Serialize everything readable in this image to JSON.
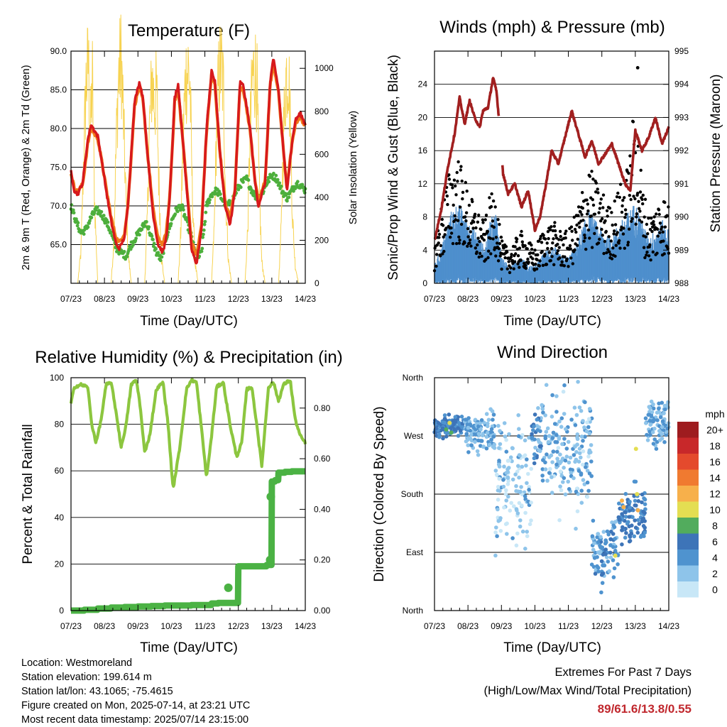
{
  "chart_data": [
    {
      "type": "line",
      "title": "Temperature (F)",
      "xlabel": "Time (Day/UTC)",
      "ylabel": "2m & 9m T (Red, Orange) & 2m Td (Green)",
      "y2label": "Solar Insolation (Yellow)",
      "x_ticks": [
        "07/23",
        "08/23",
        "09/23",
        "10/23",
        "11/23",
        "12/23",
        "13/23",
        "14/23"
      ],
      "ylim": [
        60,
        90
      ],
      "y_ticks": [
        "65.0",
        "70.0",
        "75.0",
        "80.0",
        "85.0",
        "90.0"
      ],
      "y2lim": [
        0,
        1080
      ],
      "y2_ticks": [
        "0",
        "200",
        "400",
        "600",
        "800",
        "1000"
      ],
      "grid": true,
      "colors": {
        "t2m": "#d7191c",
        "t9m": "#f07a1a",
        "td2m": "#4daf3c",
        "solar": "#f7d352"
      },
      "series": [
        {
          "key": "t2m",
          "x": [
            0,
            0.1,
            0.2,
            0.35,
            0.5,
            0.6,
            0.8,
            0.95,
            1.05,
            1.2,
            1.35,
            1.45,
            1.6,
            1.7,
            1.9,
            2.05,
            2.15,
            2.3,
            2.45,
            2.6,
            2.75,
            2.85,
            2.95,
            3.1,
            3.2,
            3.35,
            3.5,
            3.6,
            3.75,
            3.9,
            4.05,
            4.2,
            4.3,
            4.45,
            4.6,
            4.75,
            4.9,
            5.05,
            5.15,
            5.35,
            5.5,
            5.6,
            5.8,
            5.95,
            6.05,
            6.2,
            6.35,
            6.45,
            6.6,
            6.7,
            6.85,
            7.0
          ],
          "values": [
            74.5,
            72,
            71.5,
            73,
            78.5,
            80.5,
            79,
            75,
            72,
            68,
            65,
            64.5,
            66,
            70,
            83.5,
            86,
            84,
            76,
            69,
            65,
            64,
            66,
            71,
            84,
            85.5,
            78,
            70,
            64.5,
            62.5,
            67,
            80,
            87.5,
            86,
            77,
            70,
            67.5,
            72,
            86,
            85.5,
            80,
            73,
            70,
            73,
            86,
            89,
            85,
            77,
            72,
            78,
            81,
            82,
            80.5
          ]
        },
        {
          "key": "t9m",
          "x": [
            0,
            0.1,
            0.2,
            0.35,
            0.5,
            0.6,
            0.8,
            0.95,
            1.05,
            1.2,
            1.35,
            1.45,
            1.6,
            1.7,
            1.9,
            2.05,
            2.15,
            2.3,
            2.45,
            2.6,
            2.75,
            2.85,
            2.95,
            3.1,
            3.2,
            3.35,
            3.5,
            3.6,
            3.75,
            3.9,
            4.05,
            4.2,
            4.3,
            4.45,
            4.6,
            4.75,
            4.9,
            5.05,
            5.15,
            5.35,
            5.5,
            5.6,
            5.8,
            5.95,
            6.05,
            6.2,
            6.35,
            6.45,
            6.6,
            6.7,
            6.85,
            7.0
          ],
          "values": [
            74.3,
            72.3,
            71.8,
            72.8,
            78,
            80,
            78.7,
            75,
            72.3,
            68.5,
            65.8,
            65.3,
            66.5,
            70,
            83,
            85.5,
            83.6,
            76.2,
            69.6,
            65.8,
            65,
            66.7,
            71.2,
            83.6,
            85,
            78,
            70.5,
            65.3,
            63.5,
            67.5,
            79.6,
            87,
            85.6,
            77,
            70.5,
            68.3,
            72.3,
            85.5,
            85,
            79.8,
            73.3,
            70.5,
            73.2,
            85.6,
            88.5,
            84.6,
            77,
            72.4,
            77.8,
            80.6,
            81.6,
            80.2
          ]
        },
        {
          "key": "td2m",
          "x": [
            0,
            0.15,
            0.3,
            0.45,
            0.6,
            0.75,
            0.9,
            1.05,
            1.2,
            1.35,
            1.5,
            1.65,
            1.8,
            1.95,
            2.1,
            2.25,
            2.4,
            2.55,
            2.7,
            2.85,
            3.0,
            3.15,
            3.3,
            3.45,
            3.6,
            3.75,
            3.9,
            4.05,
            4.2,
            4.35,
            4.5,
            4.65,
            4.8,
            4.95,
            5.1,
            5.25,
            5.4,
            5.55,
            5.7,
            5.85,
            6.0,
            6.15,
            6.3,
            6.45,
            6.6,
            6.75,
            6.9,
            7.0
          ],
          "values": [
            70,
            68,
            66.5,
            67,
            68.5,
            69.5,
            69,
            68,
            66.5,
            64.5,
            64,
            63.5,
            65,
            66,
            67,
            68,
            66,
            64,
            63,
            66,
            68,
            69.5,
            70,
            68,
            66,
            63,
            64,
            70,
            71.5,
            72,
            71,
            70,
            70.5,
            72,
            73,
            73.5,
            72,
            71,
            71.5,
            73,
            74,
            73.5,
            72,
            71,
            72,
            73,
            72.5,
            72
          ]
        },
        {
          "key": "solar",
          "axis": "y2",
          "x": [
            0,
            0.2,
            0.3,
            0.38,
            0.45,
            0.52,
            0.58,
            0.64,
            0.7,
            0.8,
            1.2,
            1.28,
            1.35,
            1.42,
            1.5,
            1.56,
            1.62,
            1.7,
            1.8,
            2.2,
            2.27,
            2.34,
            2.42,
            2.5,
            2.56,
            2.62,
            2.7,
            2.8,
            3.2,
            3.28,
            3.35,
            3.42,
            3.5,
            3.56,
            3.62,
            3.7,
            3.8,
            4.2,
            4.28,
            4.35,
            4.42,
            4.5,
            4.56,
            4.62,
            4.7,
            4.8,
            5.2,
            5.28,
            5.35,
            5.42,
            5.5,
            5.56,
            5.62,
            5.7,
            5.8,
            6.2,
            6.28,
            6.35,
            6.42,
            6.5,
            6.56,
            6.62,
            6.7,
            6.8,
            7.0
          ],
          "values": [
            0,
            0,
            150,
            600,
            920,
            1030,
            700,
            950,
            400,
            0,
            0,
            200,
            650,
            960,
            1050,
            800,
            500,
            150,
            0,
            0,
            250,
            700,
            950,
            830,
            900,
            500,
            120,
            0,
            0,
            240,
            680,
            950,
            1000,
            900,
            450,
            100,
            0,
            0,
            260,
            720,
            980,
            1010,
            880,
            420,
            110,
            0,
            0,
            250,
            700,
            950,
            1000,
            900,
            450,
            100,
            0,
            0,
            250,
            700,
            960,
            1000,
            700,
            300,
            80,
            0,
            0
          ]
        }
      ]
    },
    {
      "type": "scatter",
      "title": "Winds (mph) & Pressure (mb)",
      "xlabel": "Time (Day/UTC)",
      "ylabel": "Sonic/Prop Wind & Gust (Blue, Black)",
      "y2label": "Station Pressure (Maroon)",
      "x_ticks": [
        "07/23",
        "08/23",
        "09/23",
        "10/23",
        "11/23",
        "12/23",
        "13/23",
        "14/23"
      ],
      "ylim": [
        0,
        28
      ],
      "y_ticks": [
        "0",
        "4",
        "8",
        "12",
        "16",
        "20",
        "24"
      ],
      "y2lim": [
        988,
        995
      ],
      "y2_ticks": [
        "988",
        "989",
        "990",
        "991",
        "992",
        "993",
        "994",
        "995"
      ],
      "grid": true,
      "colors": {
        "wind": "#4e8fcd",
        "gust": "#000000",
        "pressure": "#a11f1f"
      },
      "wind_envelope": {
        "x": [
          0,
          0.2,
          0.35,
          0.5,
          0.7,
          0.85,
          1.0,
          1.2,
          1.35,
          1.5,
          1.65,
          1.85,
          2.0,
          2.2,
          2.4,
          2.6,
          2.8,
          3.0,
          3.2,
          3.4,
          3.6,
          3.8,
          4.0,
          4.2,
          4.4,
          4.6,
          4.8,
          5.0,
          5.2,
          5.4,
          5.6,
          5.8,
          6.0,
          6.2,
          6.4,
          6.6,
          6.8,
          7.0
        ],
        "values": [
          2,
          4,
          6,
          8,
          9,
          8,
          7,
          6,
          5,
          4,
          7,
          8,
          3,
          2,
          2.5,
          3,
          2,
          2,
          3,
          4,
          4,
          3,
          3,
          4,
          6,
          8,
          7,
          6,
          5,
          6,
          7,
          8,
          9,
          7,
          5,
          6,
          7,
          6
        ]
      },
      "gust_envelope": {
        "x": [
          0,
          0.2,
          0.35,
          0.5,
          0.7,
          0.85,
          1.0,
          1.2,
          1.35,
          1.5,
          1.65,
          1.85,
          2.0,
          2.2,
          2.4,
          2.6,
          2.8,
          3.0,
          3.2,
          3.4,
          3.6,
          3.8,
          4.0,
          4.2,
          4.4,
          4.6,
          4.8,
          5.0,
          5.2,
          5.4,
          5.6,
          5.8,
          6.0,
          6.2,
          6.4,
          6.6,
          6.8,
          7.0
        ],
        "values": [
          5,
          9,
          12,
          14,
          15,
          13,
          11,
          9,
          8,
          7,
          10,
          11,
          5,
          4,
          5,
          6,
          5,
          4,
          6,
          7,
          7,
          6,
          6,
          8,
          11,
          14,
          12,
          11,
          9,
          10,
          12,
          14,
          22,
          12,
          8,
          9,
          11,
          9
        ]
      },
      "gust_max": {
        "x": 6.07,
        "y": 26
      },
      "pressure": {
        "x": [
          0,
          0.2,
          0.4,
          0.6,
          0.75,
          0.9,
          1.05,
          1.2,
          1.35,
          1.45,
          1.6,
          1.75,
          1.85,
          1.95,
          2.05,
          2.2,
          2.4,
          2.6,
          2.8,
          3.0,
          3.15,
          3.3,
          3.5,
          3.7,
          3.9,
          4.1,
          4.3,
          4.5,
          4.7,
          4.9,
          5.1,
          5.3,
          5.5,
          5.7,
          5.85,
          6.0,
          6.2,
          6.4,
          6.6,
          6.8,
          7.0
        ],
        "values": [
          989.3,
          990.2,
          991.5,
          992.5,
          993.6,
          992.8,
          993.5,
          993.0,
          992.7,
          993.2,
          993.3,
          994.2,
          993.8,
          992.7,
          991.3,
          990.7,
          991.0,
          990.3,
          990.8,
          989.6,
          990.0,
          990.8,
          992.0,
          991.6,
          992.4,
          993.2,
          992.5,
          991.8,
          992.3,
          991.6,
          991.9,
          992.2,
          991.6,
          991.0,
          990.8,
          992.6,
          992.0,
          992.4,
          993.0,
          992.2,
          992.7
        ]
      },
      "pressure_gap": [
        1.92,
        2.03
      ]
    },
    {
      "type": "scatter",
      "title": "Relative Humidity (%) & Precipitation (in)",
      "xlabel": "Time (Day/UTC)",
      "ylabel": "Percent & Total Rainfall",
      "x_ticks": [
        "07/23",
        "08/23",
        "09/23",
        "10/23",
        "11/23",
        "12/23",
        "13/23",
        "14/23"
      ],
      "ylim": [
        0,
        100
      ],
      "y_ticks": [
        "0",
        "20",
        "40",
        "60",
        "80",
        "100"
      ],
      "y2lim": [
        0,
        0.92
      ],
      "y2_ticks": [
        "0.00",
        "0.20",
        "0.40",
        "0.60",
        "0.80"
      ],
      "grid": true,
      "colors": {
        "rh": "#8cc63f",
        "precip": "#4bb244"
      },
      "series": [
        {
          "name": "Relative Humidity",
          "x": [
            0,
            0.1,
            0.3,
            0.5,
            0.62,
            0.75,
            0.9,
            1.05,
            1.2,
            1.35,
            1.5,
            1.65,
            1.8,
            1.95,
            2.05,
            2.2,
            2.35,
            2.55,
            2.75,
            2.9,
            3.05,
            3.25,
            3.45,
            3.6,
            3.75,
            3.9,
            4.05,
            4.2,
            4.35,
            4.55,
            4.75,
            4.95,
            5.1,
            5.25,
            5.4,
            5.55,
            5.7,
            5.9,
            6.05,
            6.2,
            6.35,
            6.55,
            6.7,
            6.85,
            7.0
          ],
          "values": [
            89,
            96,
            97,
            96,
            80,
            72,
            82,
            97,
            98,
            85,
            70,
            80,
            97,
            99,
            90,
            68,
            75,
            95,
            98,
            80,
            52,
            70,
            95,
            99,
            98,
            78,
            57,
            75,
            96,
            98,
            80,
            66,
            72,
            95,
            96,
            80,
            62,
            96,
            98,
            90,
            97,
            99,
            82,
            75,
            72
          ]
        },
        {
          "name": "Total Precipitation",
          "axis": "y2",
          "x": [
            0,
            0.4,
            0.8,
            1.2,
            1.6,
            2.0,
            2.4,
            2.8,
            3.2,
            3.6,
            4.0,
            4.2,
            4.4,
            4.6,
            4.8,
            5.0,
            5.2,
            5.4,
            5.6,
            5.75,
            5.85,
            6.0,
            6.1,
            6.2,
            6.4,
            6.6,
            6.8,
            7.0
          ],
          "values": [
            0.0,
            0.003,
            0.008,
            0.012,
            0.014,
            0.016,
            0.018,
            0.02,
            0.02,
            0.022,
            0.022,
            0.028,
            0.03,
            0.03,
            0.03,
            0.175,
            0.175,
            0.175,
            0.175,
            0.175,
            0.18,
            0.51,
            0.515,
            0.545,
            0.548,
            0.55,
            0.55,
            0.55
          ]
        }
      ],
      "precip_points": [
        {
          "x": 4.7,
          "y": 0.09
        },
        {
          "x": 5.95,
          "y": 0.2
        },
        {
          "x": 5.97,
          "y": 0.45
        }
      ]
    },
    {
      "type": "scatter",
      "title": "Wind Direction",
      "xlabel": "Time (Day/UTC)",
      "ylabel": "Direction (Colored By Speed)",
      "x_ticks": [
        "07/23",
        "08/23",
        "09/23",
        "10/23",
        "11/23",
        "12/23",
        "13/23",
        "14/23"
      ],
      "ylim": [
        0,
        360
      ],
      "y_ticks": [
        "North",
        "East",
        "South",
        "West",
        "North"
      ],
      "grid": true,
      "colorbar": {
        "title": "mph",
        "labels": [
          "0",
          "2",
          "4",
          "6",
          "8",
          "10",
          "12",
          "14",
          "16",
          "18",
          "20+"
        ],
        "colors": [
          "#c8e7f7",
          "#8ec4ea",
          "#4f93cf",
          "#3d74b8",
          "#52ac5d",
          "#e4de52",
          "#f7b04b",
          "#f07a30",
          "#e44a2d",
          "#c8282a",
          "#9e1c1f"
        ]
      }
    }
  ],
  "info": {
    "location": "Location: Westmoreland",
    "elevation": "Station elevation: 199.614 m",
    "latlon": "Station lat/lon: 43.1065; -75.4615",
    "created": "Figure created on Mon, 2025-07-14, at 23:21 UTC",
    "recent": "Most recent data timestamp: 2025/07/14 23:15:00"
  },
  "extremes": {
    "title": "Extremes For Past 7 Days",
    "subtitle": "(High/Low/Max Wind/Total Precipitation)",
    "value": "89/61.6/13.8/0.55"
  }
}
